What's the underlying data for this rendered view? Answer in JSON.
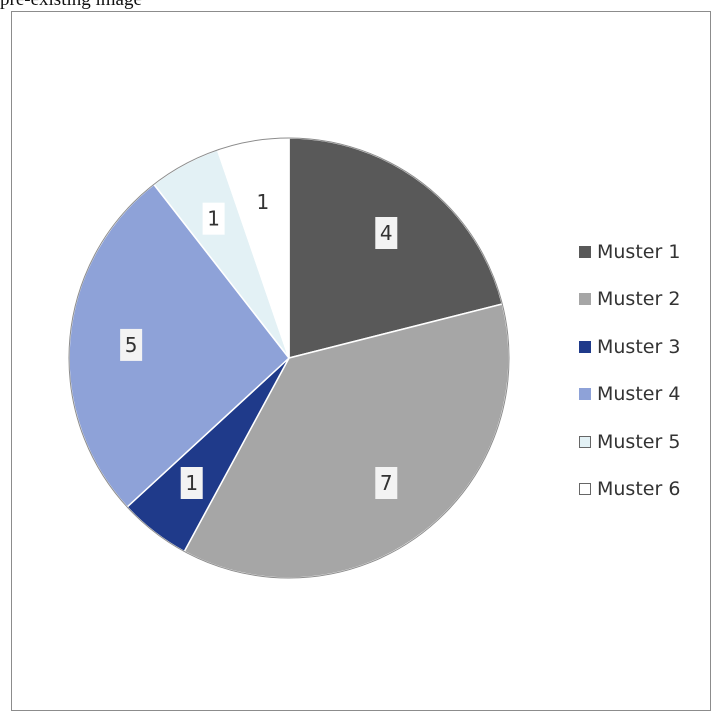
{
  "header": {
    "text": "pre-existing image"
  },
  "chart_data": {
    "type": "pie",
    "categories": [
      "Muster 1",
      "Muster 2",
      "Muster 3",
      "Muster 4",
      "Muster 5",
      "Muster 6"
    ],
    "values": [
      4,
      7,
      1,
      5,
      1,
      1
    ],
    "data_labels": [
      "4",
      "7",
      "1",
      "5",
      "1",
      "1"
    ],
    "colors": [
      "#595959",
      "#a6a6a6",
      "#1f3a8a",
      "#8ea2d8",
      "#e3f1f5",
      "#ffffff"
    ],
    "legend_position": "right",
    "title": ""
  }
}
